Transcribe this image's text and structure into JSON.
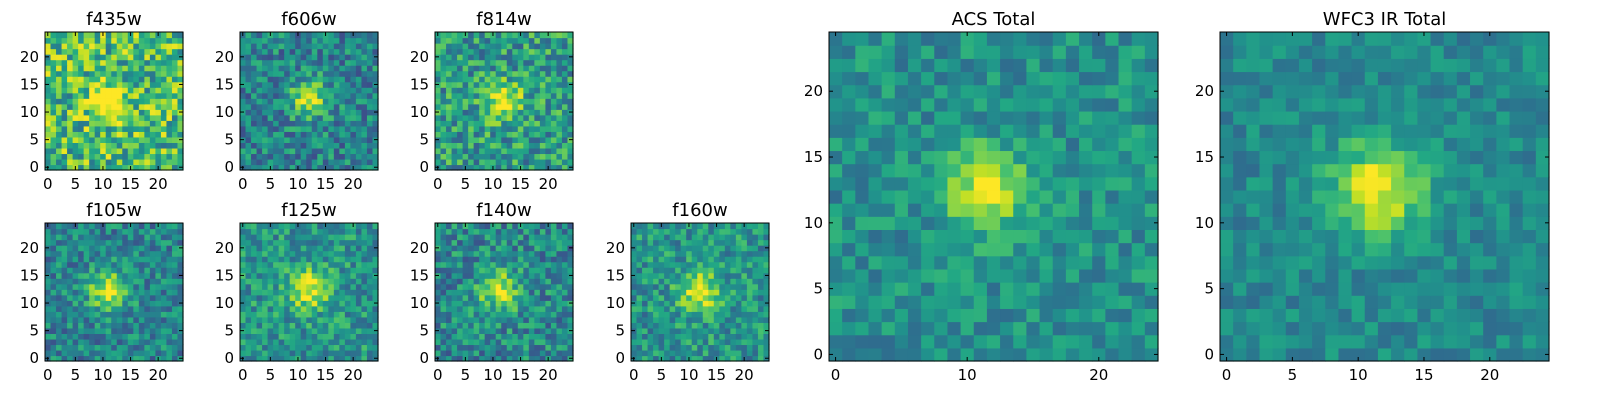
{
  "chart_data": [
    {
      "type": "heatmap",
      "title": "f435w",
      "xticks": [
        0,
        5,
        10,
        15,
        20
      ],
      "yticks": [
        0,
        5,
        10,
        15,
        20
      ],
      "xlim": [
        0,
        25
      ],
      "ylim": [
        0,
        25
      ],
      "grid_size": 25,
      "center": [
        11,
        12
      ],
      "peak": 0.55,
      "width": 2.2,
      "noise": 0.3,
      "base": 0.68,
      "seed": 11
    },
    {
      "type": "heatmap",
      "title": "f606w",
      "xticks": [
        0,
        5,
        10,
        15,
        20
      ],
      "yticks": [
        0,
        5,
        10,
        15,
        20
      ],
      "xlim": [
        0,
        25
      ],
      "ylim": [
        0,
        25
      ],
      "grid_size": 25,
      "center": [
        12,
        12.5
      ],
      "peak": 0.5,
      "width": 2.3,
      "noise": 0.22,
      "base": 0.45,
      "seed": 23
    },
    {
      "type": "heatmap",
      "title": "f814w",
      "xticks": [
        0,
        5,
        10,
        15,
        20
      ],
      "yticks": [
        0,
        5,
        10,
        15,
        20
      ],
      "xlim": [
        0,
        25
      ],
      "ylim": [
        0,
        25
      ],
      "grid_size": 25,
      "center": [
        12,
        12
      ],
      "peak": 0.45,
      "width": 2.3,
      "noise": 0.25,
      "base": 0.55,
      "seed": 37
    },
    {
      "type": "heatmap",
      "title": "f105w",
      "xticks": [
        0,
        5,
        10,
        15,
        20
      ],
      "yticks": [
        0,
        5,
        10,
        15,
        20
      ],
      "xlim": [
        0,
        25
      ],
      "ylim": [
        0,
        25
      ],
      "grid_size": 25,
      "center": [
        11,
        12.5
      ],
      "peak": 0.5,
      "width": 2.5,
      "noise": 0.2,
      "base": 0.45,
      "seed": 41
    },
    {
      "type": "heatmap",
      "title": "f125w",
      "xticks": [
        0,
        5,
        10,
        15,
        20
      ],
      "yticks": [
        0,
        5,
        10,
        15,
        20
      ],
      "xlim": [
        0,
        25
      ],
      "ylim": [
        0,
        25
      ],
      "grid_size": 25,
      "center": [
        12,
        12.5
      ],
      "peak": 0.45,
      "width": 2.6,
      "noise": 0.2,
      "base": 0.52,
      "seed": 53
    },
    {
      "type": "heatmap",
      "title": "f140w",
      "xticks": [
        0,
        5,
        10,
        15,
        20
      ],
      "yticks": [
        0,
        5,
        10,
        15,
        20
      ],
      "xlim": [
        0,
        25
      ],
      "ylim": [
        0,
        25
      ],
      "grid_size": 25,
      "center": [
        11,
        12.5
      ],
      "peak": 0.45,
      "width": 2.6,
      "noise": 0.22,
      "base": 0.47,
      "seed": 67
    },
    {
      "type": "heatmap",
      "title": "f160w",
      "xticks": [
        0,
        5,
        10,
        15,
        20
      ],
      "yticks": [
        0,
        5,
        10,
        15,
        20
      ],
      "xlim": [
        0,
        25
      ],
      "ylim": [
        0,
        25
      ],
      "grid_size": 25,
      "center": [
        12,
        12
      ],
      "peak": 0.45,
      "width": 2.6,
      "noise": 0.2,
      "base": 0.52,
      "seed": 79
    },
    {
      "type": "heatmap",
      "title": "ACS Total",
      "xticks": [
        0,
        10,
        20
      ],
      "yticks": [
        0,
        5,
        10,
        15,
        20
      ],
      "xlim": [
        0,
        25
      ],
      "ylim": [
        0,
        25
      ],
      "grid_size": 25,
      "center": [
        11.5,
        12.5
      ],
      "peak": 0.5,
      "width": 2.1,
      "noise": 0.15,
      "base": 0.5,
      "seed": 97
    },
    {
      "type": "heatmap",
      "title": "WFC3 IR Total",
      "xticks": [
        0,
        5,
        10,
        15,
        20
      ],
      "yticks": [
        0,
        5,
        10,
        15,
        20
      ],
      "xlim": [
        0,
        25
      ],
      "ylim": [
        0,
        25
      ],
      "grid_size": 25,
      "center": [
        11.5,
        12.5
      ],
      "peak": 0.5,
      "width": 2.5,
      "noise": 0.12,
      "base": 0.47,
      "seed": 113
    }
  ],
  "colormap": "viridis"
}
